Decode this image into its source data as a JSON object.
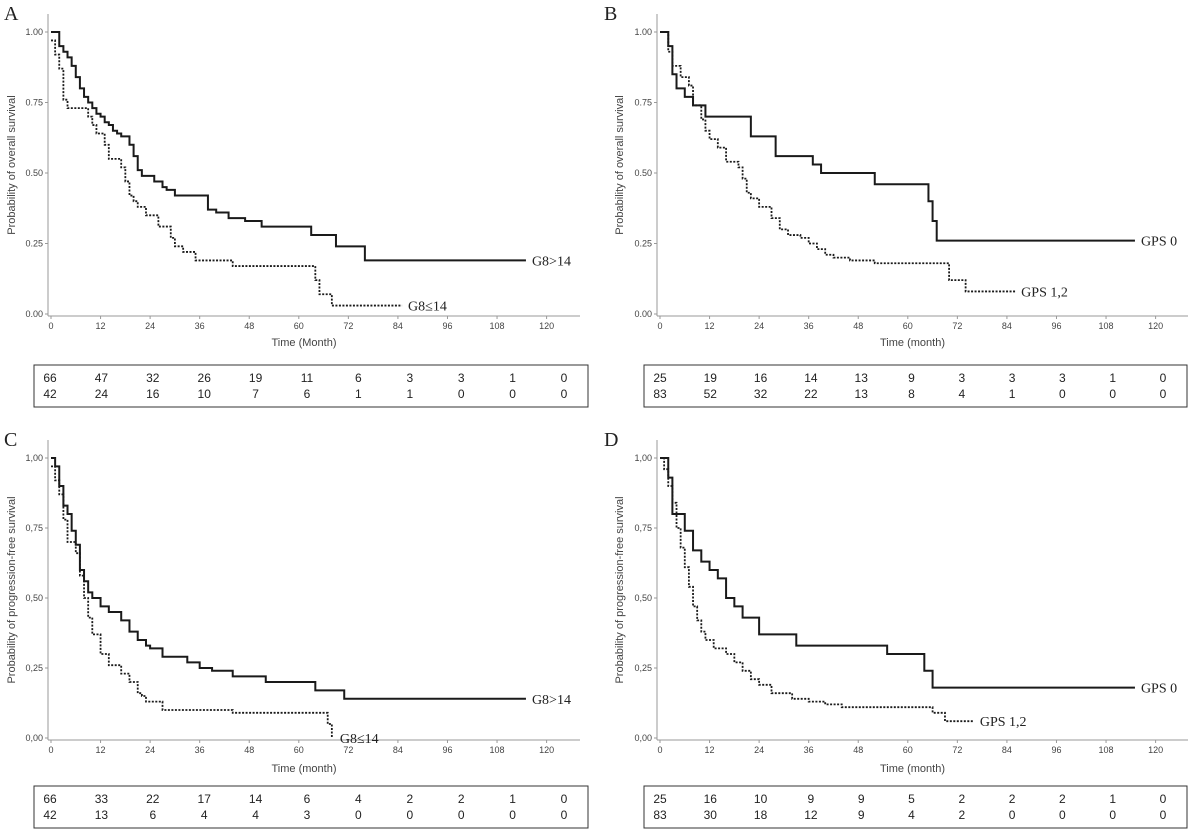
{
  "chart_data": [
    {
      "panel": "A",
      "type": "line",
      "step": true,
      "ylabel": "Probability of overall survival",
      "xlabel": "Time (Month)",
      "xlim": [
        0,
        120
      ],
      "ylim": [
        0,
        1
      ],
      "xticks": [
        "0",
        "12",
        "24",
        "36",
        "48",
        "60",
        "72",
        "84",
        "96",
        "108",
        "120"
      ],
      "yticks": [
        "0.00",
        "0.25",
        "0.50",
        "0.75",
        "1.00"
      ],
      "series": [
        {
          "name": "G8>14",
          "style": "solid",
          "x": [
            0,
            2,
            3,
            4,
            5,
            6,
            7,
            8,
            9,
            10,
            11,
            12,
            13,
            14,
            15,
            16,
            17,
            19,
            20,
            21,
            22,
            25,
            27,
            28,
            30,
            38,
            40,
            43,
            47,
            51,
            63,
            69,
            76,
            115
          ],
          "y": [
            1,
            0.95,
            0.93,
            0.91,
            0.88,
            0.84,
            0.8,
            0.77,
            0.75,
            0.73,
            0.71,
            0.7,
            0.68,
            0.67,
            0.65,
            0.64,
            0.63,
            0.6,
            0.56,
            0.51,
            0.49,
            0.47,
            0.45,
            0.44,
            0.42,
            0.37,
            0.36,
            0.34,
            0.33,
            0.31,
            0.28,
            0.24,
            0.19,
            0.19
          ]
        },
        {
          "name": "G8≤14",
          "style": "dotted",
          "x": [
            0,
            1,
            2,
            3,
            4,
            9,
            10,
            11,
            13,
            14,
            17,
            18,
            19,
            20,
            21,
            23,
            26,
            29,
            30,
            32,
            35,
            44,
            64,
            65,
            68,
            85
          ],
          "y": [
            0.97,
            0.92,
            0.87,
            0.76,
            0.73,
            0.7,
            0.67,
            0.64,
            0.6,
            0.55,
            0.52,
            0.47,
            0.42,
            0.4,
            0.38,
            0.35,
            0.31,
            0.27,
            0.24,
            0.22,
            0.19,
            0.17,
            0.12,
            0.07,
            0.03,
            0.03
          ]
        }
      ],
      "risk_table": [
        [
          "66",
          "47",
          "32",
          "26",
          "19",
          "11",
          "6",
          "3",
          "3",
          "1",
          "0"
        ],
        [
          "42",
          "24",
          "16",
          "10",
          "7",
          "6",
          "1",
          "1",
          "0",
          "0",
          "0"
        ]
      ]
    },
    {
      "panel": "B",
      "type": "line",
      "step": true,
      "ylabel": "Probability of overall survival",
      "xlabel": "Time (month)",
      "xlim": [
        0,
        120
      ],
      "ylim": [
        0,
        1
      ],
      "xticks": [
        "0",
        "12",
        "24",
        "36",
        "48",
        "60",
        "72",
        "84",
        "96",
        "108",
        "120"
      ],
      "yticks": [
        "0.00",
        "0.25",
        "0.50",
        "0.75",
        "1.00"
      ],
      "series": [
        {
          "name": "GPS 0",
          "style": "solid",
          "x": [
            0,
            2,
            3,
            4,
            6,
            8,
            11,
            22,
            28,
            37,
            39,
            52,
            65,
            66,
            67,
            115
          ],
          "y": [
            1,
            0.95,
            0.85,
            0.8,
            0.77,
            0.74,
            0.7,
            0.63,
            0.56,
            0.53,
            0.5,
            0.46,
            0.4,
            0.33,
            0.26,
            0.26
          ]
        },
        {
          "name": "GPS 1,2",
          "style": "dotted",
          "x": [
            0,
            2,
            3,
            5,
            7,
            8,
            10,
            11,
            12,
            14,
            16,
            19,
            20,
            21,
            22,
            24,
            27,
            29,
            31,
            34,
            36,
            38,
            40,
            42,
            46,
            52,
            70,
            74,
            86
          ],
          "y": [
            1,
            0.93,
            0.88,
            0.84,
            0.81,
            0.74,
            0.69,
            0.65,
            0.62,
            0.59,
            0.54,
            0.52,
            0.48,
            0.43,
            0.41,
            0.38,
            0.34,
            0.3,
            0.28,
            0.27,
            0.25,
            0.23,
            0.21,
            0.2,
            0.19,
            0.18,
            0.12,
            0.08,
            0.08
          ]
        }
      ],
      "risk_table": [
        [
          "25",
          "19",
          "16",
          "14",
          "13",
          "9",
          "3",
          "3",
          "3",
          "1",
          "0"
        ],
        [
          "83",
          "52",
          "32",
          "22",
          "13",
          "8",
          "4",
          "1",
          "0",
          "0",
          "0"
        ]
      ]
    },
    {
      "panel": "C",
      "type": "line",
      "step": true,
      "ylabel": "Probability of progression-free survival",
      "xlabel": "Time (month)",
      "xlim": [
        0,
        120
      ],
      "ylim": [
        0,
        1
      ],
      "xticks": [
        "0",
        "12",
        "24",
        "36",
        "48",
        "60",
        "72",
        "84",
        "96",
        "108",
        "120"
      ],
      "yticks": [
        "0,00",
        "0,25",
        "0,50",
        "0,75",
        "1,00"
      ],
      "series": [
        {
          "name": "G8>14",
          "style": "solid",
          "x": [
            0,
            1,
            2,
            3,
            4,
            5,
            6,
            7,
            8,
            9,
            10,
            12,
            14,
            17,
            19,
            21,
            23,
            24,
            27,
            33,
            36,
            39,
            44,
            52,
            64,
            71,
            115
          ],
          "y": [
            1,
            0.97,
            0.9,
            0.83,
            0.8,
            0.74,
            0.69,
            0.6,
            0.56,
            0.52,
            0.5,
            0.47,
            0.45,
            0.42,
            0.38,
            0.35,
            0.33,
            0.32,
            0.29,
            0.27,
            0.25,
            0.24,
            0.22,
            0.2,
            0.17,
            0.14,
            0.14
          ]
        },
        {
          "name": "G8≤14",
          "style": "dotted",
          "x": [
            0,
            1,
            2,
            3,
            4,
            6,
            7,
            8,
            9,
            10,
            12,
            14,
            17,
            19,
            21,
            22,
            23,
            27,
            44,
            67,
            68
          ],
          "y": [
            0.97,
            0.92,
            0.87,
            0.78,
            0.7,
            0.66,
            0.58,
            0.5,
            0.43,
            0.37,
            0.3,
            0.26,
            0.23,
            0.2,
            0.16,
            0.15,
            0.13,
            0.1,
            0.09,
            0.05,
            0.0
          ]
        }
      ],
      "risk_table": [
        [
          "66",
          "33",
          "22",
          "17",
          "14",
          "6",
          "4",
          "2",
          "2",
          "1",
          "0"
        ],
        [
          "42",
          "13",
          "6",
          "4",
          "4",
          "3",
          "0",
          "0",
          "0",
          "0",
          "0"
        ]
      ]
    },
    {
      "panel": "D",
      "type": "line",
      "step": true,
      "ylabel": "Probability of progression-free survival",
      "xlabel": "Time (month)",
      "xlim": [
        0,
        120
      ],
      "ylim": [
        0,
        1
      ],
      "xticks": [
        "0",
        "12",
        "24",
        "36",
        "48",
        "60",
        "72",
        "84",
        "96",
        "108",
        "120"
      ],
      "yticks": [
        "0,00",
        "0,25",
        "0,50",
        "0,75",
        "1,00"
      ],
      "series": [
        {
          "name": "GPS 0",
          "style": "solid",
          "x": [
            0,
            2,
            3,
            6,
            8,
            10,
            12,
            14,
            16,
            18,
            20,
            24,
            33,
            55,
            64,
            66,
            115
          ],
          "y": [
            1,
            0.93,
            0.8,
            0.74,
            0.67,
            0.63,
            0.6,
            0.57,
            0.5,
            0.47,
            0.43,
            0.37,
            0.33,
            0.3,
            0.24,
            0.18,
            0.18
          ]
        },
        {
          "name": "GPS 1,2",
          "style": "dotted",
          "x": [
            0,
            1,
            2,
            3,
            4,
            5,
            6,
            7,
            8,
            9,
            10,
            11,
            13,
            16,
            18,
            20,
            22,
            24,
            27,
            32,
            36,
            40,
            44,
            66,
            69,
            76
          ],
          "y": [
            1,
            0.96,
            0.9,
            0.84,
            0.75,
            0.68,
            0.61,
            0.54,
            0.47,
            0.42,
            0.38,
            0.35,
            0.32,
            0.3,
            0.27,
            0.24,
            0.21,
            0.19,
            0.16,
            0.14,
            0.13,
            0.12,
            0.11,
            0.09,
            0.06,
            0.06
          ]
        }
      ],
      "risk_table": [
        [
          "25",
          "16",
          "10",
          "9",
          "9",
          "5",
          "2",
          "2",
          "2",
          "1",
          "0"
        ],
        [
          "83",
          "30",
          "18",
          "12",
          "9",
          "4",
          "2",
          "0",
          "0",
          "0",
          "0"
        ]
      ]
    }
  ]
}
